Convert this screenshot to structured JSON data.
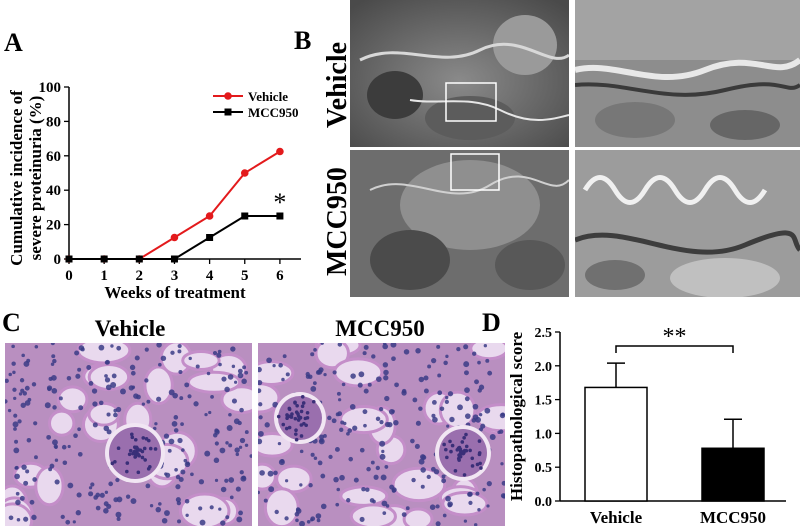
{
  "panel_letters": {
    "a": "A",
    "b": "B",
    "c": "C",
    "d": "D"
  },
  "em_rows": {
    "top": "Vehicle",
    "bottom": "MCC950"
  },
  "histo_cols": {
    "left": "Vehicle",
    "right": "MCC950"
  },
  "colors": {
    "vehicle": "#e31a1c",
    "mcc950": "#000000",
    "em_tissue": "#6b6b6b",
    "pas_tissue": "#b98fc0",
    "nuclei": "#3b3c86"
  },
  "chart_data": [
    {
      "type": "line",
      "panel": "A",
      "ylabel_lines": [
        "Cumulative incidence of",
        "severe proteinuria (%)"
      ],
      "xlabel": "Weeks of treatment",
      "x": [
        0,
        1,
        2,
        3,
        4,
        5,
        6
      ],
      "xticks": [
        "0",
        "1",
        "2",
        "3",
        "4",
        "5",
        "6"
      ],
      "yticks": [
        "0",
        "20",
        "40",
        "60",
        "80",
        "100"
      ],
      "xlim": [
        0,
        6.6
      ],
      "ylim": [
        0,
        100
      ],
      "legend_position": "top-right",
      "series": [
        {
          "name": "Vehicle",
          "color": "#e31a1c",
          "marker": "circle",
          "values": [
            0,
            0,
            0,
            12.5,
            25,
            50,
            62.5
          ]
        },
        {
          "name": "MCC950",
          "color": "#000000",
          "marker": "square",
          "values": [
            0,
            0,
            0,
            0,
            12.5,
            25,
            25
          ]
        }
      ],
      "annotation": {
        "text": "*",
        "x": 6,
        "y": 25
      }
    },
    {
      "type": "bar",
      "panel": "D",
      "ylabel": "Histopathological score",
      "categories": [
        "Vehicle",
        "MCC950"
      ],
      "values": [
        1.68,
        0.78
      ],
      "errors": [
        0.36,
        0.43
      ],
      "fills": [
        "#ffffff",
        "#000000"
      ],
      "ylim": [
        0,
        2.5
      ],
      "yticks": [
        "0.0",
        "0.5",
        "1.0",
        "1.5",
        "2.0",
        "2.5"
      ],
      "significance": "**"
    }
  ]
}
